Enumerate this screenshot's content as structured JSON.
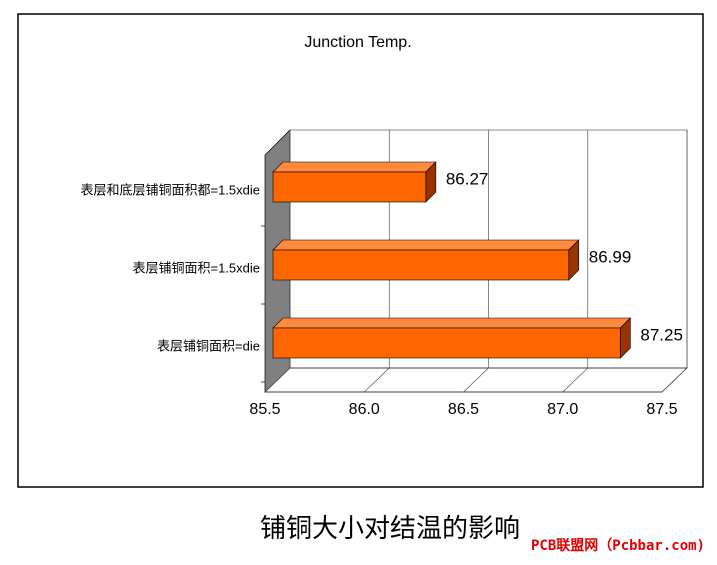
{
  "chart_data": {
    "type": "bar3d_horizontal",
    "title": "Junction Temp.",
    "categories": [
      "表层和底层铺铜面积都=1.5xdie",
      "表层铺铜面积=1.5xdie",
      "表层铺铜面积=die"
    ],
    "values": [
      86.27,
      86.99,
      87.25
    ],
    "color": "#ff6600",
    "side_color": "#993300",
    "top_color": "#ff8a3d",
    "xlim": [
      85.5,
      87.5
    ],
    "xticks": [
      85.5,
      {
        "value": 86,
        "label": "86.0"
      },
      86.5,
      {
        "value": 87,
        "label": "87.0"
      },
      87.5
    ],
    "grid": true
  },
  "caption": "铺铜大小对结温的影响",
  "watermark": "PCB联盟网（Pcbbar.com)"
}
